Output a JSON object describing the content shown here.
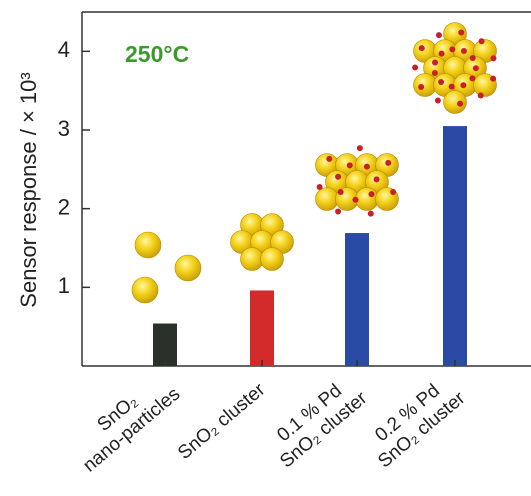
{
  "chart_data": {
    "type": "bar",
    "y_label": "Sensor response / × 10³",
    "annotation": "250°C",
    "categories": [
      [
        "SnO₂",
        "nano-particles"
      ],
      [
        "SnO₂ cluster"
      ],
      [
        "0.1 % Pd",
        "SnO₂ cluster"
      ],
      [
        "0.2 % Pd",
        "SnO₂ cluster"
      ]
    ],
    "values": [
      0.54,
      0.96,
      1.69,
      3.05
    ],
    "colors": [
      "#2b302b",
      "#d32b2b",
      "#2a4aa6",
      "#2a4aa6"
    ],
    "ylim": [
      0,
      4.5
    ],
    "yticks": [
      1,
      2,
      3,
      4
    ],
    "grid": false
  }
}
